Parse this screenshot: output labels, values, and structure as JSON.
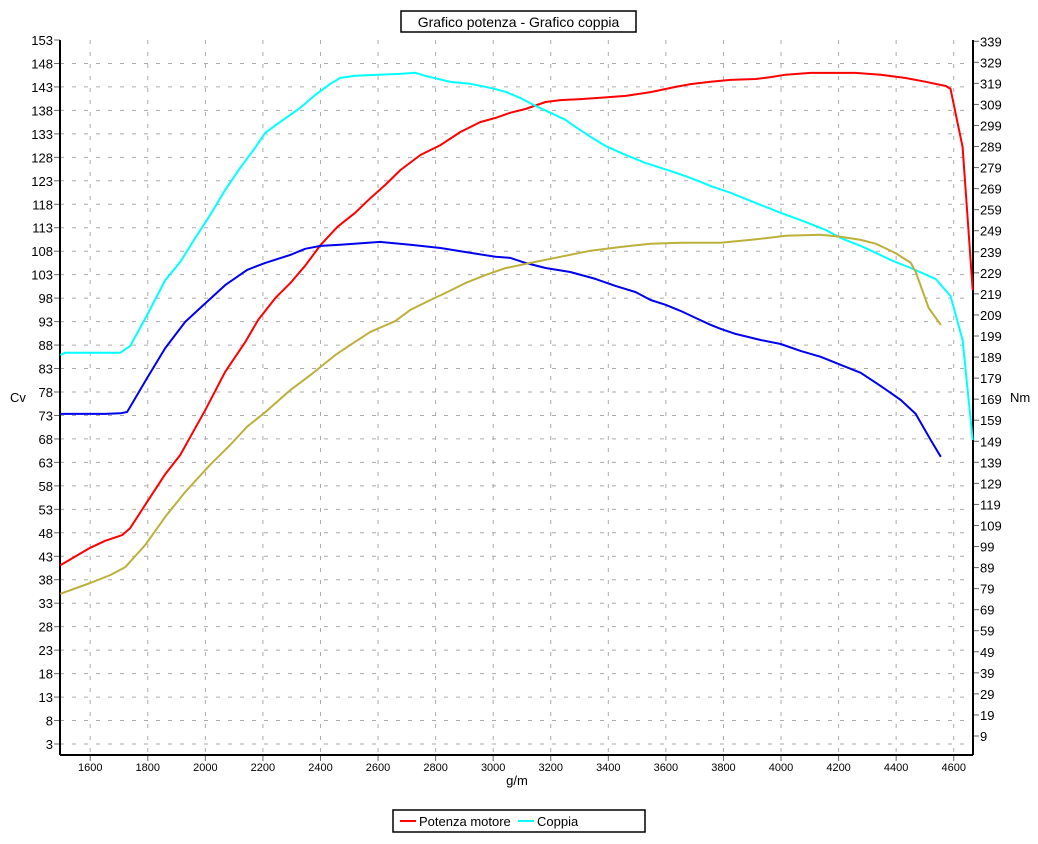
{
  "chart_data": {
    "type": "line",
    "title": "Grafico potenza - Grafico coppia",
    "xlabel": "g/m",
    "ylabel_left": "Cv",
    "ylabel_right": "Nm",
    "xlim": [
      1495,
      4667
    ],
    "ylim_left": [
      0.7,
      153
    ],
    "ylim_right": [
      4,
      339
    ],
    "x_ticks": [
      1600,
      1800,
      2000,
      2200,
      2400,
      2600,
      2800,
      3000,
      3200,
      3400,
      3600,
      3800,
      4000,
      4200,
      4400,
      4600
    ],
    "y_ticks_left": [
      153,
      148,
      143,
      138,
      133,
      128,
      123,
      118,
      113,
      108,
      103,
      98,
      93,
      88,
      83,
      78,
      73,
      68,
      63,
      58,
      53,
      48,
      43,
      38,
      33,
      28,
      23,
      18,
      13,
      8,
      3
    ],
    "y_ticks_right": [
      339,
      329,
      319,
      309,
      299,
      289,
      279,
      269,
      259,
      249,
      239,
      229,
      219,
      209,
      199,
      189,
      179,
      169,
      159,
      149,
      139,
      129,
      119,
      109,
      99,
      89,
      79,
      69,
      59,
      49,
      39,
      29,
      19,
      9
    ],
    "grid": true,
    "legend_position": "bottom-center",
    "series": [
      {
        "name": "Potenza motore",
        "axis": "left",
        "color": "#ff0000",
        "x": [
          1496,
          1600,
          1652,
          1711,
          1739,
          1802,
          1861,
          1913,
          2000,
          2069,
          2139,
          2184,
          2243,
          2295,
          2347,
          2400,
          2459,
          2521,
          2573,
          2625,
          2678,
          2747,
          2817,
          2886,
          2955,
          3008,
          3060,
          3112,
          3182,
          3234,
          3303,
          3373,
          3460,
          3547,
          3634,
          3686,
          3755,
          3825,
          3912,
          3964,
          4016,
          4103,
          4259,
          4346,
          4433,
          4503,
          4572,
          4589,
          4631,
          4666
        ],
        "y": [
          41.1,
          44.8,
          46.3,
          47.5,
          49.0,
          55.0,
          60.5,
          64.6,
          74.2,
          82.3,
          88.7,
          93.4,
          98.0,
          101.2,
          104.9,
          109.3,
          113.2,
          116.2,
          119.3,
          122.1,
          125.3,
          128.5,
          130.6,
          133.4,
          135.5,
          136.4,
          137.5,
          138.3,
          139.8,
          140.2,
          140.4,
          140.7,
          141.1,
          141.9,
          143.0,
          143.6,
          144.1,
          144.5,
          144.7,
          145.1,
          145.6,
          146.0,
          146.0,
          145.6,
          144.9,
          144.1,
          143.2,
          142.6,
          130.2,
          99.7
        ]
      },
      {
        "name": "Coppia",
        "axis": "right",
        "color": "#00ffff",
        "x": [
          1496,
          1513,
          1704,
          1739,
          1798,
          1861,
          1913,
          1965,
          2017,
          2069,
          2121,
          2173,
          2208,
          2260,
          2330,
          2382,
          2434,
          2469,
          2521,
          2590,
          2678,
          2729,
          2764,
          2851,
          2921,
          2990,
          3043,
          3094,
          3147,
          3199,
          3251,
          3286,
          3338,
          3390,
          3460,
          3529,
          3616,
          3686,
          3755,
          3825,
          3912,
          3999,
          4085,
          4155,
          4207,
          4277,
          4329,
          4381,
          4451,
          4537,
          4589,
          4631,
          4666
        ],
        "y": [
          190.0,
          191,
          191,
          194.3,
          209,
          225.6,
          234.2,
          245.6,
          256.5,
          268.4,
          278.9,
          288.4,
          295.5,
          300.7,
          307.4,
          313.5,
          318.8,
          321.6,
          322.6,
          323,
          323.5,
          324,
          322.6,
          319.7,
          318.8,
          316.9,
          315,
          312.1,
          308.3,
          305,
          301.7,
          298.3,
          293.6,
          289.3,
          285,
          281.2,
          277.4,
          274.1,
          270.3,
          267,
          262.2,
          257.5,
          253.2,
          249.4,
          245.6,
          241.8,
          238.5,
          235.1,
          231.3,
          226.1,
          218,
          197.1,
          149.6
        ]
      },
      {
        "axis": "right",
        "color": "#0000ee",
        "x": [
          1496,
          1652,
          1704,
          1728,
          1798,
          1861,
          1930,
          1982,
          2069,
          2145,
          2208,
          2295,
          2347,
          2400,
          2469,
          2608,
          2712,
          2817,
          2903,
          3008,
          3060,
          3112,
          3182,
          3268,
          3355,
          3425,
          3494,
          3547,
          3599,
          3651,
          3703,
          3755,
          3790,
          3842,
          3929,
          3999,
          4068,
          4138,
          4207,
          4277,
          4346,
          4416,
          4468,
          4520,
          4555
        ],
        "y": [
          162.0,
          162,
          162.3,
          162.9,
          179.1,
          193.3,
          205.7,
          212.3,
          223.2,
          230.4,
          233.7,
          237.5,
          240.4,
          241.8,
          242.3,
          243.7,
          242.3,
          240.8,
          238.9,
          236.6,
          236.1,
          233.7,
          231.3,
          229.4,
          226.1,
          222.8,
          219.9,
          216.1,
          213.8,
          210.9,
          207.6,
          204.3,
          202.4,
          200,
          197.1,
          195.2,
          191.9,
          189.1,
          185.3,
          181.5,
          175.3,
          168.6,
          162,
          149.6,
          141.6
        ]
      },
      {
        "axis": "left",
        "color": "#bdb03a",
        "x": [
          1496,
          1600,
          1670,
          1722,
          1791,
          1861,
          1930,
          2017,
          2086,
          2145,
          2208,
          2295,
          2365,
          2452,
          2503,
          2573,
          2660,
          2712,
          2782,
          2834,
          2903,
          2973,
          3043,
          3130,
          3216,
          3338,
          3442,
          3547,
          3651,
          3790,
          3894,
          3964,
          4016,
          4138,
          4207,
          4277,
          4329,
          4398,
          4451,
          4468,
          4513,
          4555
        ],
        "y": [
          35.0,
          37.3,
          39.0,
          40.7,
          45.4,
          51.4,
          56.7,
          62.5,
          66.7,
          70.6,
          73.7,
          78.4,
          81.6,
          85.9,
          88.0,
          90.8,
          93.1,
          95.5,
          97.6,
          99.1,
          101.2,
          102.9,
          104.4,
          105.5,
          106.6,
          108.1,
          108.9,
          109.6,
          109.8,
          109.8,
          110.4,
          110.9,
          111.3,
          111.5,
          111.1,
          110.4,
          109.6,
          107.6,
          105.5,
          103.6,
          95.9,
          92.3
        ]
      }
    ]
  }
}
